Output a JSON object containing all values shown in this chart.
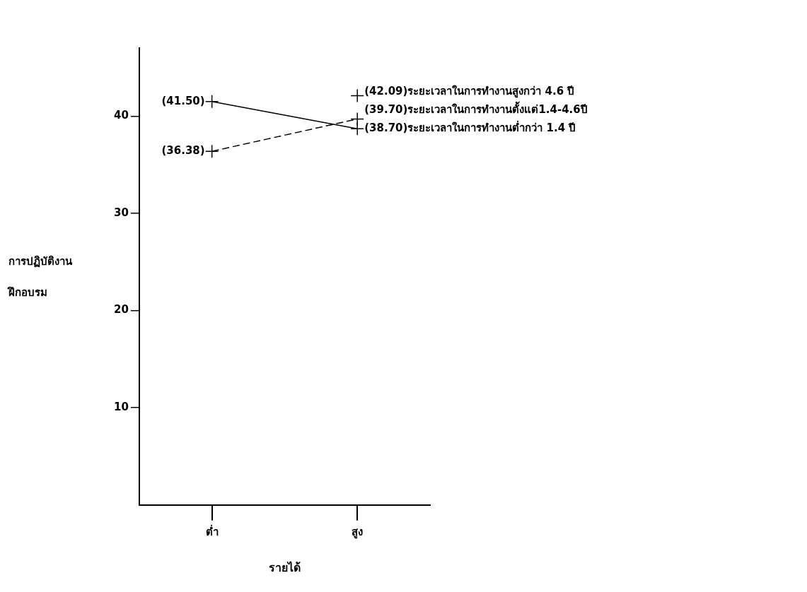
{
  "chart_data": {
    "type": "line",
    "xlabel": "รายได้",
    "ylabel": "การปฏิบัติงาน\nฝึกอบรม",
    "categories": [
      "ต่ำ",
      "สูง"
    ],
    "ylim": [
      0,
      47
    ],
    "yticks": [
      10,
      20,
      30,
      40
    ],
    "grid": false,
    "legend": false,
    "marker": "cross",
    "series": [
      {
        "name": "ระยะเวลาในการทำงานสูงกว่า 4.6 ปี",
        "color": "#000000",
        "values": [
          null,
          42.09
        ],
        "value_labels": [
          null,
          "(42.09)"
        ]
      },
      {
        "name": "ระยะเวลาในการทำงานตั้งแต่1.4-4.6ปี",
        "color": "#000000",
        "line_style": "dashed",
        "values": [
          36.38,
          39.7
        ],
        "value_labels": [
          "(36.38)",
          "(39.70)"
        ]
      },
      {
        "name": "ระยะเวลาในการทำงานต่ำกว่า 1.4 ปี",
        "color": "#000000",
        "line_style": "solid",
        "values": [
          41.5,
          38.7
        ],
        "value_labels": [
          "(41.50)",
          "(38.70)"
        ]
      }
    ]
  }
}
